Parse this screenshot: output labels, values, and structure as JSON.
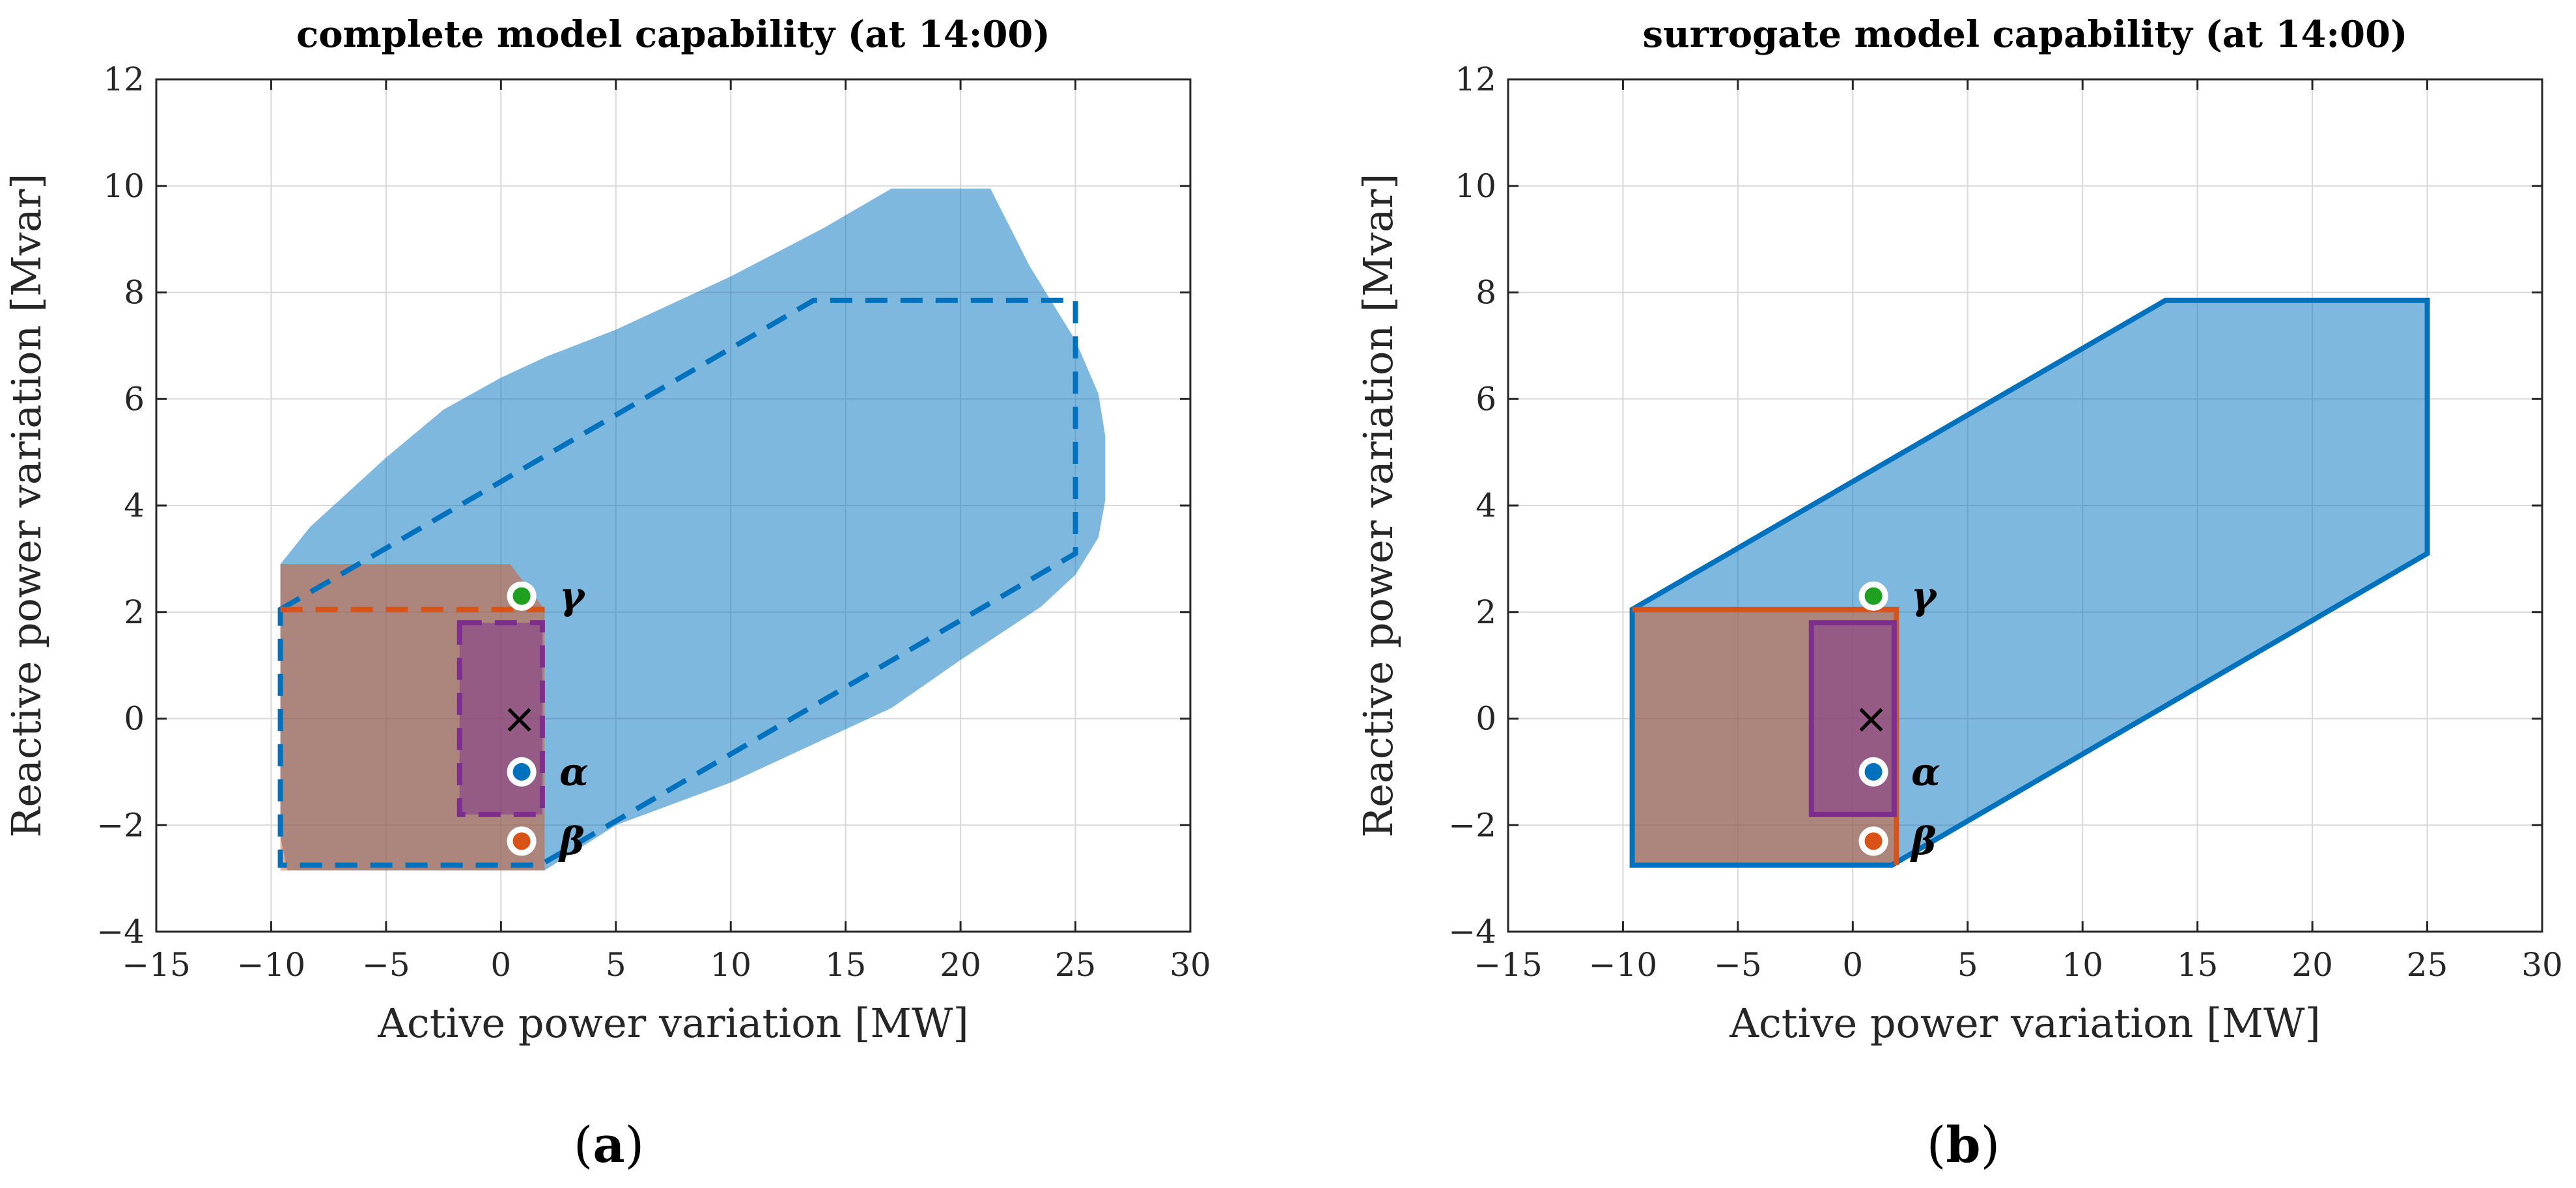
{
  "figure": {
    "captions": [
      {
        "open": "(",
        "label": "a",
        "close": ")"
      },
      {
        "open": "(",
        "label": "b",
        "close": ")"
      }
    ]
  },
  "chart_data": [
    {
      "type": "area",
      "title": "complete model capability (at 14:00)",
      "xlabel": "Active power variation [MW]",
      "ylabel": "Reactive power variation [Mvar]",
      "xlim": [
        -15,
        30
      ],
      "ylim": [
        -4,
        12
      ],
      "xticks": [
        -15,
        -10,
        -5,
        0,
        5,
        10,
        15,
        20,
        25,
        30
      ],
      "yticks": [
        -4,
        -2,
        0,
        2,
        4,
        6,
        8,
        10,
        12
      ],
      "grid": true,
      "colors": {
        "blue": "#0072bd",
        "orange": "#d95319",
        "purple": "#7e2f8e",
        "green": "#77ac30"
      },
      "regions": [
        {
          "name": "complete-capability",
          "color": "#0072bd",
          "style": "filled",
          "opacity": 0.5,
          "points": [
            [
              -9.6,
              2.9
            ],
            [
              -8.3,
              3.6
            ],
            [
              -5,
              4.9
            ],
            [
              -2.5,
              5.8
            ],
            [
              0,
              6.4
            ],
            [
              2,
              6.8
            ],
            [
              5,
              7.3
            ],
            [
              10,
              8.3
            ],
            [
              14,
              9.2
            ],
            [
              17,
              9.95
            ],
            [
              21.3,
              9.95
            ],
            [
              23,
              8.5
            ],
            [
              25,
              7.1
            ],
            [
              26,
              6.1
            ],
            [
              26.3,
              5.3
            ],
            [
              26.3,
              4.1
            ],
            [
              26,
              3.4
            ],
            [
              25,
              2.7
            ],
            [
              23.5,
              2.1
            ],
            [
              20,
              1.1
            ],
            [
              17,
              0.2
            ],
            [
              10,
              -1.2
            ],
            [
              5,
              -2.0
            ],
            [
              1.9,
              -2.85
            ],
            [
              -9.3,
              -2.85
            ],
            [
              -9.6,
              -2.2
            ]
          ]
        },
        {
          "name": "orange-region",
          "color": "#d95319",
          "style": "filled",
          "opacity": 0.5,
          "points": [
            [
              -9.6,
              2.9
            ],
            [
              0.4,
              2.9
            ],
            [
              1.9,
              2.05
            ],
            [
              1.9,
              -2.85
            ],
            [
              -9.6,
              -2.85
            ]
          ]
        },
        {
          "name": "purple-region",
          "color": "#7e2f8e",
          "style": "filled",
          "opacity": 0.5,
          "points": [
            [
              -1.8,
              1.8
            ],
            [
              1.8,
              1.8
            ],
            [
              1.8,
              -1.8
            ],
            [
              -1.8,
              -1.8
            ]
          ]
        }
      ],
      "outlines": [
        {
          "name": "surrogate-boundary",
          "color": "#0072bd",
          "style": "dashed",
          "points": [
            [
              -9.6,
              2.05
            ],
            [
              13.6,
              7.85
            ],
            [
              25,
              7.85
            ],
            [
              25,
              3.1
            ],
            [
              1.7,
              -2.75
            ],
            [
              -9.6,
              -2.75
            ]
          ],
          "closed": true
        },
        {
          "name": "orange-boundary",
          "color": "#d95319",
          "style": "dashed",
          "points": [
            [
              -9.6,
              2.05
            ],
            [
              1.9,
              2.05
            ]
          ],
          "closed": false
        },
        {
          "name": "purple-boundary",
          "color": "#7e2f8e",
          "style": "dashed",
          "points": [
            [
              -1.8,
              1.8
            ],
            [
              1.8,
              1.8
            ],
            [
              1.8,
              -1.8
            ],
            [
              -1.8,
              -1.8
            ]
          ],
          "closed": true
        }
      ],
      "operating_point": {
        "x": 0.8,
        "y": 0,
        "marker": "×"
      },
      "points": [
        {
          "label": "γ",
          "x": 0.9,
          "y": 2.3,
          "color": "#20a020"
        },
        {
          "label": "α",
          "x": 0.9,
          "y": -1.0,
          "color": "#0072bd"
        },
        {
          "label": "β",
          "x": 0.9,
          "y": -2.3,
          "color": "#d95319"
        }
      ]
    },
    {
      "type": "area",
      "title": "surrogate model capability (at 14:00)",
      "xlabel": "Active power variation [MW]",
      "ylabel": "Reactive power variation [Mvar]",
      "xlim": [
        -15,
        30
      ],
      "ylim": [
        -4,
        12
      ],
      "xticks": [
        -15,
        -10,
        -5,
        0,
        5,
        10,
        15,
        20,
        25,
        30
      ],
      "yticks": [
        -4,
        -2,
        0,
        2,
        4,
        6,
        8,
        10,
        12
      ],
      "grid": true,
      "colors": {
        "blue": "#0072bd",
        "orange": "#d95319",
        "purple": "#7e2f8e",
        "green": "#77ac30"
      },
      "regions": [
        {
          "name": "surrogate-capability",
          "color": "#0072bd",
          "style": "filled",
          "opacity": 0.5,
          "points": [
            [
              -9.6,
              2.05
            ],
            [
              13.6,
              7.85
            ],
            [
              25,
              7.85
            ],
            [
              25,
              3.1
            ],
            [
              1.7,
              -2.75
            ],
            [
              -9.6,
              -2.75
            ]
          ]
        },
        {
          "name": "orange-region",
          "color": "#d95319",
          "style": "filled",
          "opacity": 0.5,
          "points": [
            [
              -9.6,
              2.05
            ],
            [
              1.9,
              2.05
            ],
            [
              1.9,
              -2.75
            ],
            [
              -9.6,
              -2.75
            ]
          ]
        },
        {
          "name": "purple-region",
          "color": "#7e2f8e",
          "style": "filled",
          "opacity": 0.5,
          "points": [
            [
              -1.8,
              1.8
            ],
            [
              1.8,
              1.8
            ],
            [
              1.8,
              -1.8
            ],
            [
              -1.8,
              -1.8
            ]
          ]
        }
      ],
      "outlines": [
        {
          "name": "surrogate-boundary",
          "color": "#0072bd",
          "style": "solid",
          "points": [
            [
              -9.6,
              2.05
            ],
            [
              13.6,
              7.85
            ],
            [
              25,
              7.85
            ],
            [
              25,
              3.1
            ],
            [
              1.7,
              -2.75
            ],
            [
              -9.6,
              -2.75
            ]
          ],
          "closed": true
        },
        {
          "name": "orange-boundary",
          "color": "#d95319",
          "style": "solid",
          "points": [
            [
              -9.6,
              2.05
            ],
            [
              1.9,
              2.05
            ],
            [
              1.9,
              -2.75
            ]
          ],
          "closed": false
        },
        {
          "name": "purple-boundary",
          "color": "#7e2f8e",
          "style": "solid",
          "points": [
            [
              -1.8,
              1.8
            ],
            [
              1.8,
              1.8
            ],
            [
              1.8,
              -1.8
            ],
            [
              -1.8,
              -1.8
            ]
          ],
          "closed": true
        }
      ],
      "operating_point": {
        "x": 0.8,
        "y": 0,
        "marker": "×"
      },
      "points": [
        {
          "label": "γ",
          "x": 0.9,
          "y": 2.3,
          "color": "#20a020"
        },
        {
          "label": "α",
          "x": 0.9,
          "y": -1.0,
          "color": "#0072bd"
        },
        {
          "label": "β",
          "x": 0.9,
          "y": -2.3,
          "color": "#d95319"
        }
      ]
    }
  ]
}
